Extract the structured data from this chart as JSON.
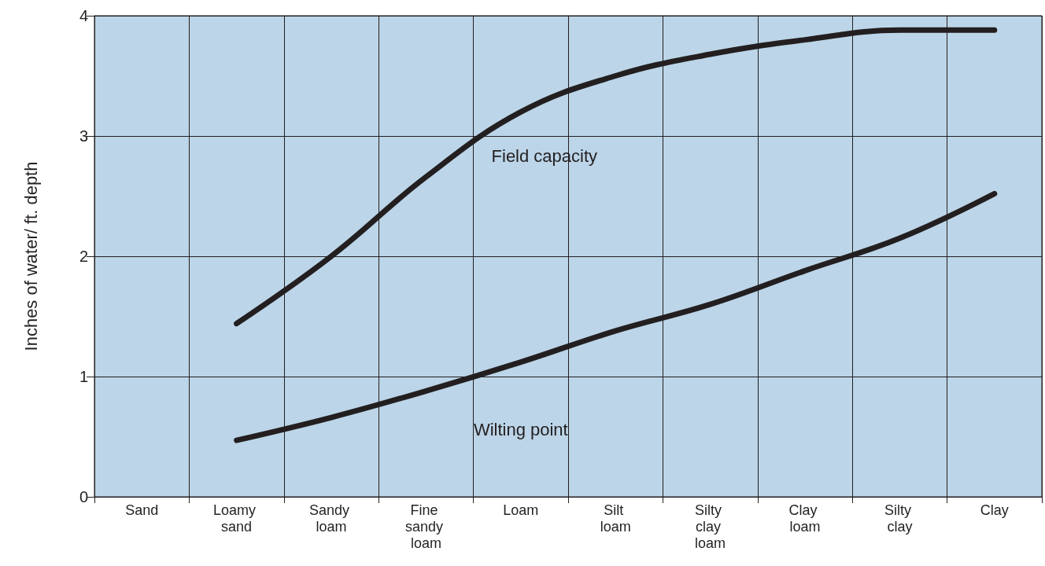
{
  "chart_data": {
    "type": "line",
    "ylabel": "Inches of water/ ft. depth",
    "categories": [
      "Sand",
      "Loamy sand",
      "Sandy loam",
      "Fine sandy loam",
      "Loam",
      "Silt loam",
      "Silty clay loam",
      "Clay loam",
      "Silty clay",
      "Clay"
    ],
    "series": [
      {
        "name": "Field capacity",
        "color": "#231f20",
        "values": [
          null,
          1.44,
          2.0,
          2.66,
          3.2,
          3.5,
          3.68,
          3.8,
          3.88,
          3.88
        ]
      },
      {
        "name": "Wilting point",
        "color": "#231f20",
        "values": [
          null,
          0.47,
          0.66,
          0.88,
          1.12,
          1.38,
          1.6,
          1.88,
          2.15,
          2.52
        ]
      }
    ],
    "ylim": [
      0,
      4
    ],
    "yticks": [
      0,
      1,
      2,
      3,
      4
    ],
    "grid": true,
    "legend": false,
    "marker": "none",
    "line_style": "solid"
  }
}
